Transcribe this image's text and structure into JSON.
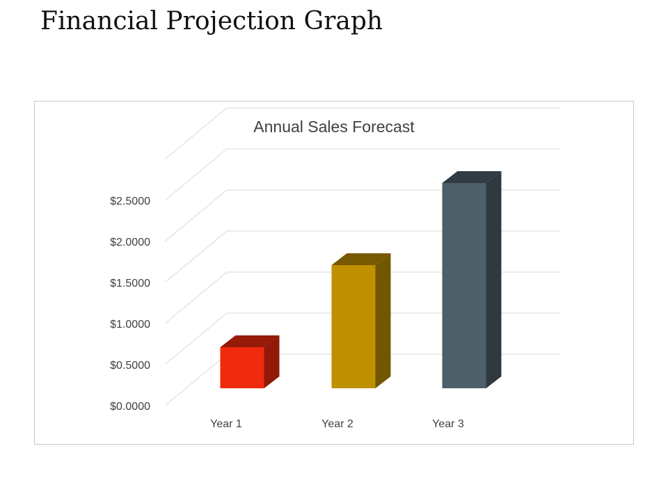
{
  "page": {
    "title": "Financial Projection Graph"
  },
  "chart_data": {
    "type": "bar",
    "style": "3d-column",
    "title": "Annual Sales Forecast",
    "xlabel": "",
    "ylabel": "",
    "categories": [
      "Year 1",
      "Year 2",
      "Year 3"
    ],
    "values": [
      0.5,
      1.5,
      2.5
    ],
    "ylim": [
      0,
      3
    ],
    "yticks": [
      0,
      0.5,
      1,
      1.5,
      2,
      2.5
    ],
    "ytick_labels": [
      "$0.0000",
      "$0.5000",
      "$1.0000",
      "$1.5000",
      "$2.0000",
      "$2.5000"
    ],
    "grid": true,
    "legend": "none",
    "colors": [
      "#f02a0c",
      "#bf9000",
      "#4e5f6a"
    ]
  }
}
